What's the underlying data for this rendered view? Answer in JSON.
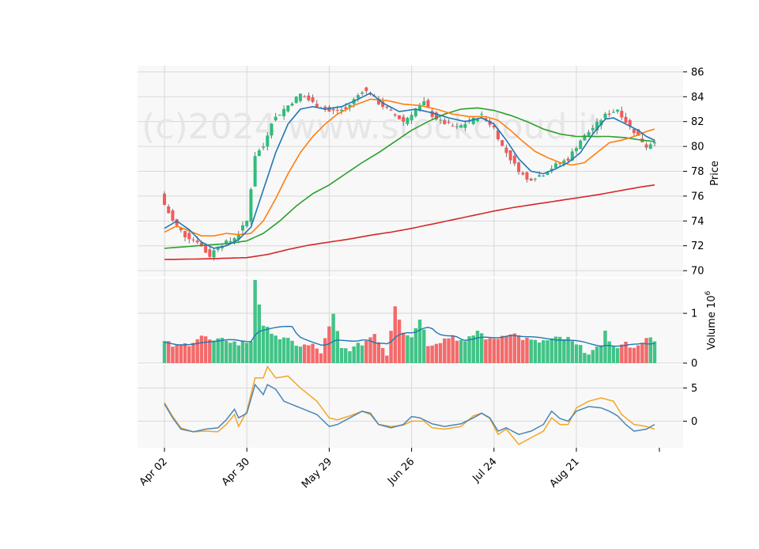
{
  "chart_data": {
    "type": "candlestick",
    "watermark": "(c)2024 www.stockcloud.it",
    "x_ticks": [
      "Apr 02",
      "Apr 30",
      "May 29",
      "Jun 26",
      "Jul 24",
      "Aug 21"
    ],
    "x_tick_index": [
      0,
      20,
      40,
      60,
      80,
      100
    ],
    "colors": {
      "up": "#2ebd7a",
      "down": "#f35a5a",
      "ma_fast": "#1f77b4",
      "ma_mid": "#ff7f0e",
      "ma_slow": "#2ca02c",
      "ma_long": "#d62728",
      "vol_ma": "#1f77b4",
      "osc_1": "#4a86b8",
      "osc_2": "#f5a623"
    },
    "price_panel": {
      "ylabel": "Price",
      "ylim": [
        69.5,
        86.5
      ],
      "yticks": [
        70,
        72,
        74,
        76,
        78,
        80,
        82,
        84,
        86
      ]
    },
    "volume_panel": {
      "ylabel": "Volume  10^6",
      "ylim": [
        0,
        1.7
      ],
      "yticks": [
        0,
        1
      ]
    },
    "oscillator_panel": {
      "ylim": [
        -4,
        8.5
      ],
      "yticks": [
        0,
        5
      ]
    },
    "price_anchors": [
      [
        0,
        75.3
      ],
      [
        2,
        74.0
      ],
      [
        5,
        72.8
      ],
      [
        8,
        72.4
      ],
      [
        10,
        71.5
      ],
      [
        11,
        71.2
      ],
      [
        13,
        72.0
      ],
      [
        16,
        72.4
      ],
      [
        18,
        73.0
      ],
      [
        20,
        74.0
      ],
      [
        22,
        79.3
      ],
      [
        24,
        80.0
      ],
      [
        26,
        82.0
      ],
      [
        29,
        83.0
      ],
      [
        33,
        84.2
      ],
      [
        36,
        83.5
      ],
      [
        40,
        82.8
      ],
      [
        44,
        83.0
      ],
      [
        48,
        84.5
      ],
      [
        50,
        84.3
      ],
      [
        52,
        83.5
      ],
      [
        56,
        82.5
      ],
      [
        58,
        82.0
      ],
      [
        61,
        83.0
      ],
      [
        63,
        83.5
      ],
      [
        65,
        82.5
      ],
      [
        67,
        82.0
      ],
      [
        71,
        81.5
      ],
      [
        74,
        82.0
      ],
      [
        77,
        82.5
      ],
      [
        80,
        81.5
      ],
      [
        82,
        80.0
      ],
      [
        85,
        78.5
      ],
      [
        88,
        77.3
      ],
      [
        92,
        77.8
      ],
      [
        95,
        78.5
      ],
      [
        98,
        79.0
      ],
      [
        101,
        80.5
      ],
      [
        104,
        81.5
      ],
      [
        107,
        82.5
      ],
      [
        110,
        83.0
      ],
      [
        112,
        82.0
      ],
      [
        115,
        80.8
      ],
      [
        117,
        80.0
      ],
      [
        119,
        80.5
      ]
    ],
    "volume_anchors": [
      [
        0,
        0.42
      ],
      [
        3,
        0.32
      ],
      [
        6,
        0.4
      ],
      [
        9,
        0.55
      ],
      [
        12,
        0.42
      ],
      [
        15,
        0.48
      ],
      [
        18,
        0.38
      ],
      [
        21,
        0.45
      ],
      [
        22,
        1.7
      ],
      [
        24,
        0.7
      ],
      [
        26,
        0.65
      ],
      [
        28,
        0.5
      ],
      [
        30,
        0.45
      ],
      [
        33,
        0.35
      ],
      [
        36,
        0.35
      ],
      [
        38,
        0.22
      ],
      [
        41,
        0.95
      ],
      [
        43,
        0.28
      ],
      [
        46,
        0.3
      ],
      [
        49,
        0.45
      ],
      [
        51,
        0.6
      ],
      [
        54,
        0.18
      ],
      [
        56,
        1.18
      ],
      [
        58,
        0.65
      ],
      [
        60,
        0.52
      ],
      [
        62,
        0.92
      ],
      [
        64,
        0.38
      ],
      [
        67,
        0.45
      ],
      [
        70,
        0.55
      ],
      [
        73,
        0.4
      ],
      [
        76,
        0.65
      ],
      [
        79,
        0.45
      ],
      [
        82,
        0.55
      ],
      [
        84,
        0.62
      ],
      [
        87,
        0.5
      ],
      [
        90,
        0.42
      ],
      [
        93,
        0.45
      ],
      [
        96,
        0.5
      ],
      [
        98,
        0.48
      ],
      [
        100,
        0.35
      ],
      [
        103,
        0.22
      ],
      [
        106,
        0.3
      ],
      [
        107,
        0.68
      ],
      [
        109,
        0.3
      ],
      [
        112,
        0.38
      ],
      [
        115,
        0.32
      ],
      [
        117,
        0.55
      ],
      [
        119,
        0.4
      ]
    ],
    "osc1_anchors": [
      [
        0,
        2.6
      ],
      [
        2,
        0.5
      ],
      [
        4,
        -1.2
      ],
      [
        7,
        -1.6
      ],
      [
        10,
        -1.2
      ],
      [
        13,
        -1.0
      ],
      [
        15,
        0.2
      ],
      [
        17,
        1.8
      ],
      [
        18,
        0.5
      ],
      [
        20,
        1.2
      ],
      [
        22,
        5.5
      ],
      [
        24,
        4.0
      ],
      [
        25,
        5.5
      ],
      [
        27,
        4.8
      ],
      [
        29,
        3.0
      ],
      [
        33,
        2.0
      ],
      [
        37,
        1.0
      ],
      [
        40,
        -0.8
      ],
      [
        42,
        -0.5
      ],
      [
        45,
        0.5
      ],
      [
        48,
        1.5
      ],
      [
        50,
        1.2
      ],
      [
        52,
        -0.5
      ],
      [
        55,
        -1.0
      ],
      [
        58,
        -0.5
      ],
      [
        60,
        0.7
      ],
      [
        62,
        0.5
      ],
      [
        65,
        -0.4
      ],
      [
        68,
        -0.8
      ],
      [
        72,
        -0.4
      ],
      [
        75,
        0.5
      ],
      [
        77,
        1.2
      ],
      [
        79,
        0.5
      ],
      [
        81,
        -1.5
      ],
      [
        83,
        -1.0
      ],
      [
        86,
        -2.0
      ],
      [
        89,
        -1.5
      ],
      [
        92,
        -0.5
      ],
      [
        94,
        1.5
      ],
      [
        96,
        0.4
      ],
      [
        98,
        0.0
      ],
      [
        100,
        1.5
      ],
      [
        103,
        2.2
      ],
      [
        106,
        2.0
      ],
      [
        108,
        1.5
      ],
      [
        110,
        0.8
      ],
      [
        112,
        -0.5
      ],
      [
        114,
        -1.5
      ],
      [
        117,
        -1.2
      ],
      [
        119,
        -0.5
      ]
    ],
    "osc2_anchors": [
      [
        0,
        2.8
      ],
      [
        2,
        0.7
      ],
      [
        4,
        -1.0
      ],
      [
        7,
        -1.6
      ],
      [
        10,
        -1.5
      ],
      [
        13,
        -1.6
      ],
      [
        15,
        -0.5
      ],
      [
        17,
        1.0
      ],
      [
        18,
        -0.8
      ],
      [
        20,
        1.5
      ],
      [
        22,
        6.5
      ],
      [
        24,
        6.5
      ],
      [
        25,
        8.2
      ],
      [
        27,
        6.5
      ],
      [
        30,
        6.8
      ],
      [
        33,
        5.0
      ],
      [
        37,
        3.0
      ],
      [
        40,
        0.5
      ],
      [
        42,
        0.2
      ],
      [
        45,
        0.8
      ],
      [
        48,
        1.5
      ],
      [
        50,
        1.0
      ],
      [
        52,
        -0.5
      ],
      [
        55,
        -0.8
      ],
      [
        58,
        -0.6
      ],
      [
        60,
        0.0
      ],
      [
        63,
        0.0
      ],
      [
        65,
        -1.0
      ],
      [
        68,
        -1.2
      ],
      [
        72,
        -0.8
      ],
      [
        75,
        0.8
      ],
      [
        77,
        1.2
      ],
      [
        79,
        0.4
      ],
      [
        81,
        -2.0
      ],
      [
        83,
        -1.2
      ],
      [
        86,
        -3.5
      ],
      [
        89,
        -2.5
      ],
      [
        92,
        -1.5
      ],
      [
        94,
        0.5
      ],
      [
        96,
        -0.5
      ],
      [
        98,
        -0.5
      ],
      [
        100,
        2.0
      ],
      [
        103,
        3.0
      ],
      [
        106,
        3.5
      ],
      [
        109,
        3.0
      ],
      [
        111,
        1.0
      ],
      [
        114,
        -0.5
      ],
      [
        117,
        -0.8
      ],
      [
        119,
        -1.2
      ]
    ],
    "ma_fast_anchors": [
      [
        0,
        73.4
      ],
      [
        3,
        74.0
      ],
      [
        6,
        73.3
      ],
      [
        9,
        72.3
      ],
      [
        12,
        71.8
      ],
      [
        15,
        72.0
      ],
      [
        18,
        72.5
      ],
      [
        21,
        73.5
      ],
      [
        24,
        76.5
      ],
      [
        27,
        79.5
      ],
      [
        30,
        81.8
      ],
      [
        33,
        83.0
      ],
      [
        36,
        83.2
      ],
      [
        39,
        83.0
      ],
      [
        43,
        83.2
      ],
      [
        47,
        83.8
      ],
      [
        50,
        84.3
      ],
      [
        53,
        83.5
      ],
      [
        57,
        82.8
      ],
      [
        61,
        83.0
      ],
      [
        65,
        82.7
      ],
      [
        69,
        82.3
      ],
      [
        73,
        82.0
      ],
      [
        77,
        82.3
      ],
      [
        80,
        81.8
      ],
      [
        83,
        80.5
      ],
      [
        86,
        79.0
      ],
      [
        89,
        78.0
      ],
      [
        92,
        77.8
      ],
      [
        95,
        78.2
      ],
      [
        98,
        78.7
      ],
      [
        101,
        79.5
      ],
      [
        104,
        81.0
      ],
      [
        107,
        82.2
      ],
      [
        109,
        82.3
      ],
      [
        112,
        81.8
      ],
      [
        115,
        81.3
      ],
      [
        117,
        80.8
      ],
      [
        119,
        80.5
      ]
    ],
    "ma_mid_anchors": [
      [
        0,
        73.1
      ],
      [
        3,
        73.6
      ],
      [
        6,
        73.2
      ],
      [
        9,
        72.8
      ],
      [
        12,
        72.8
      ],
      [
        15,
        73.0
      ],
      [
        18,
        72.9
      ],
      [
        21,
        73.0
      ],
      [
        24,
        74.0
      ],
      [
        27,
        75.8
      ],
      [
        30,
        77.8
      ],
      [
        33,
        79.5
      ],
      [
        36,
        80.8
      ],
      [
        39,
        81.8
      ],
      [
        42,
        82.6
      ],
      [
        46,
        83.3
      ],
      [
        50,
        83.8
      ],
      [
        54,
        83.7
      ],
      [
        58,
        83.4
      ],
      [
        62,
        83.3
      ],
      [
        66,
        83.0
      ],
      [
        70,
        82.6
      ],
      [
        74,
        82.4
      ],
      [
        78,
        82.4
      ],
      [
        81,
        82.1
      ],
      [
        84,
        81.3
      ],
      [
        87,
        80.4
      ],
      [
        90,
        79.6
      ],
      [
        93,
        79.1
      ],
      [
        96,
        78.7
      ],
      [
        99,
        78.5
      ],
      [
        102,
        78.7
      ],
      [
        105,
        79.5
      ],
      [
        108,
        80.3
      ],
      [
        111,
        80.5
      ],
      [
        114,
        80.8
      ],
      [
        117,
        81.2
      ],
      [
        119,
        81.4
      ]
    ],
    "ma_slow_anchors": [
      [
        0,
        71.8
      ],
      [
        4,
        71.9
      ],
      [
        8,
        72.0
      ],
      [
        12,
        72.1
      ],
      [
        16,
        72.2
      ],
      [
        20,
        72.4
      ],
      [
        24,
        73.0
      ],
      [
        28,
        74.0
      ],
      [
        32,
        75.2
      ],
      [
        36,
        76.2
      ],
      [
        40,
        76.9
      ],
      [
        44,
        77.8
      ],
      [
        48,
        78.7
      ],
      [
        52,
        79.5
      ],
      [
        56,
        80.4
      ],
      [
        60,
        81.3
      ],
      [
        64,
        82.0
      ],
      [
        68,
        82.6
      ],
      [
        72,
        83.0
      ],
      [
        76,
        83.1
      ],
      [
        80,
        82.9
      ],
      [
        84,
        82.5
      ],
      [
        88,
        82.0
      ],
      [
        92,
        81.4
      ],
      [
        96,
        81.0
      ],
      [
        100,
        80.8
      ],
      [
        104,
        80.8
      ],
      [
        108,
        80.8
      ],
      [
        112,
        80.7
      ],
      [
        116,
        80.5
      ],
      [
        119,
        80.4
      ]
    ],
    "ma_long_anchors": [
      [
        0,
        70.9
      ],
      [
        10,
        70.95
      ],
      [
        20,
        71.05
      ],
      [
        25,
        71.3
      ],
      [
        30,
        71.7
      ],
      [
        35,
        72.05
      ],
      [
        40,
        72.3
      ],
      [
        45,
        72.55
      ],
      [
        50,
        72.85
      ],
      [
        55,
        73.1
      ],
      [
        60,
        73.4
      ],
      [
        65,
        73.75
      ],
      [
        70,
        74.1
      ],
      [
        75,
        74.45
      ],
      [
        80,
        74.8
      ],
      [
        85,
        75.1
      ],
      [
        90,
        75.35
      ],
      [
        95,
        75.6
      ],
      [
        100,
        75.85
      ],
      [
        105,
        76.1
      ],
      [
        110,
        76.4
      ],
      [
        115,
        76.7
      ],
      [
        119,
        76.9
      ]
    ],
    "n_candles": 120
  }
}
